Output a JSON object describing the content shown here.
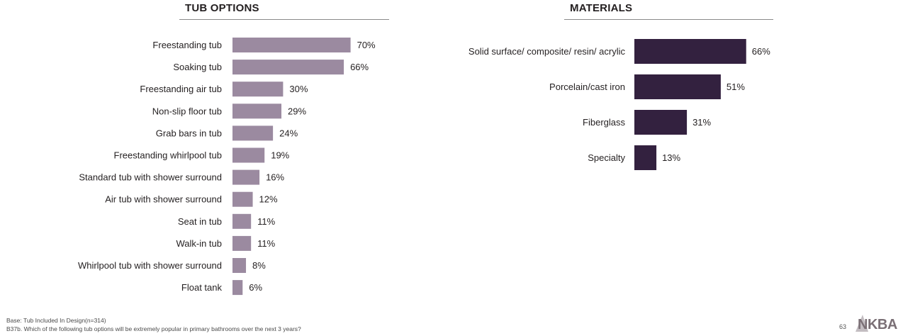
{
  "colors": {
    "left_bar": "#9b8aa0",
    "right_bar": "#33213f",
    "rule": "#8a8a8a",
    "text": "#231f20"
  },
  "chart_data": [
    {
      "type": "bar",
      "orientation": "horizontal",
      "title": "TUB OPTIONS",
      "categories": [
        "Freestanding tub",
        "Soaking tub",
        "Freestanding air tub",
        "Non-slip floor tub",
        "Grab bars in tub",
        "Freestanding whirlpool tub",
        "Standard tub with shower surround",
        "Air tub with shower surround",
        "Seat in tub",
        "Walk-in tub",
        "Whirlpool tub with shower surround",
        "Float tank"
      ],
      "values": [
        70,
        66,
        30,
        29,
        24,
        19,
        16,
        12,
        11,
        11,
        8,
        6
      ],
      "value_labels": [
        "70%",
        "66%",
        "30%",
        "29%",
        "24%",
        "19%",
        "16%",
        "12%",
        "11%",
        "11%",
        "8%",
        "6%"
      ],
      "unit": "%",
      "grid": false,
      "legend": "none"
    },
    {
      "type": "bar",
      "orientation": "horizontal",
      "title": "MATERIALS",
      "categories": [
        "Solid surface/ composite/ resin/ acrylic",
        "Porcelain/cast iron",
        "Fiberglass",
        "Specialty"
      ],
      "values": [
        66,
        51,
        31,
        13
      ],
      "value_labels": [
        "66%",
        "51%",
        "31%",
        "13%"
      ],
      "unit": "%",
      "grid": false,
      "legend": "none"
    }
  ],
  "footer": {
    "base": "Base:  Tub Included In Design(n=314)",
    "question": "B37b. Which of the following tub options will be extremely popular in primary bathrooms over the next 3 years?",
    "page_number": "63"
  },
  "logo": {
    "text": "NKBA"
  }
}
